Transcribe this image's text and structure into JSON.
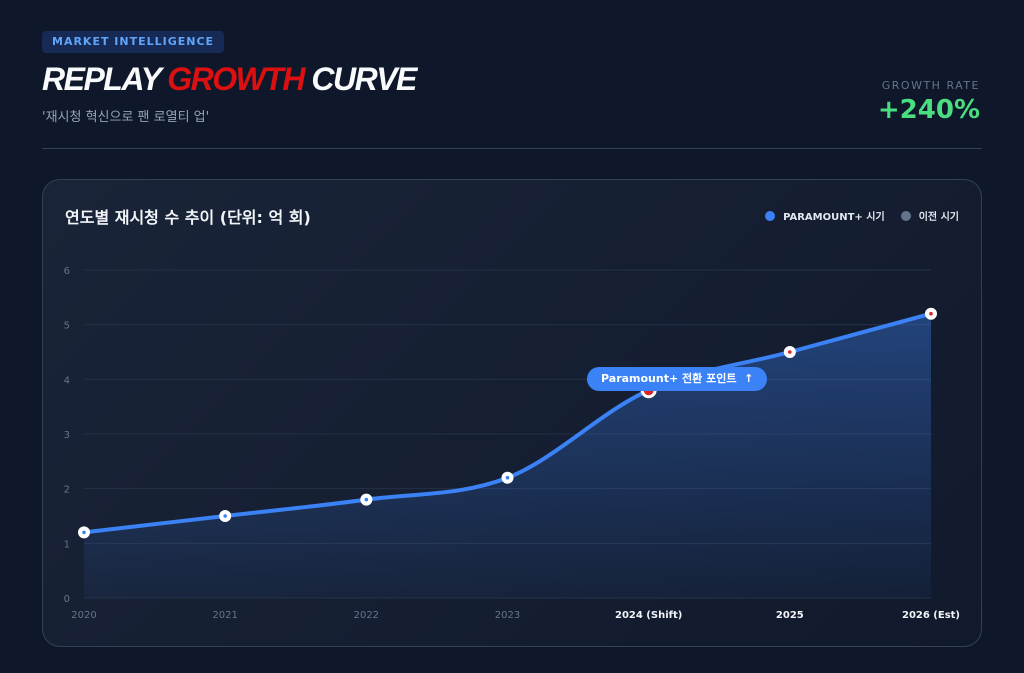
{
  "header": {
    "badge": "MARKET INTELLIGENCE",
    "title_part1": "REPLAY",
    "title_part2": "GROWTH",
    "title_part3": "CURVE",
    "subtitle": "'재시청 혁신으로 팬 로열티 업'",
    "rate_label": "GROWTH RATE",
    "rate_value": "+240%"
  },
  "colors": {
    "accent": "#3b82f6",
    "highlight": "#dc1010",
    "growth": "#4ade80",
    "previous": "#64748b"
  },
  "chart_data": {
    "type": "area",
    "title": "연도별 재시청 수 추이 (단위: 억 회)",
    "categories": [
      "2020",
      "2021",
      "2022",
      "2023",
      "2024 (Shift)",
      "2025",
      "2026 (Est)"
    ],
    "values": [
      1.2,
      1.5,
      1.8,
      2.2,
      3.8,
      4.5,
      5.2
    ],
    "ylim": [
      0,
      6
    ],
    "yticks": [
      "0",
      "1",
      "2",
      "3",
      "4",
      "5",
      "6"
    ],
    "grid": true,
    "legend_position": "top-right",
    "legend": [
      {
        "name": "PARAMOUNT+ 시기",
        "color": "#3b82f6"
      },
      {
        "name": "이전 시기",
        "color": "#64748b"
      }
    ],
    "annotation": {
      "text": "Paramount+ 전환 포인트",
      "icon": "arrow-up-icon",
      "category": "2024 (Shift)"
    }
  }
}
